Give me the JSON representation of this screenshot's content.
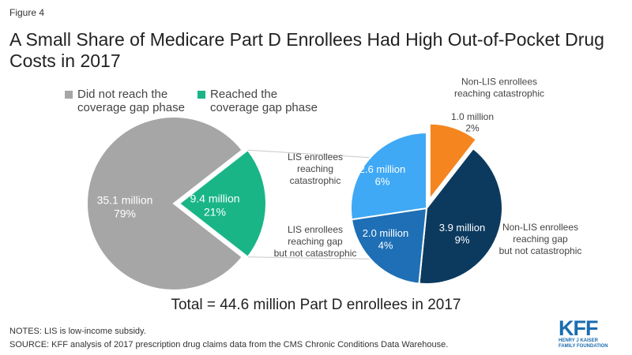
{
  "figure_label": "Figure 4",
  "title": "A Small Share of Medicare Part D Enrollees Had High Out-of-Pocket Drug Costs in 2017",
  "legend": [
    {
      "label": "Did not reach the\ncoverage gap phase",
      "color": "#a6a6a6"
    },
    {
      "label": "Reached the\ncoverage gap phase",
      "color": "#19b587"
    }
  ],
  "chart_data": [
    {
      "type": "pie",
      "title": "",
      "slices": [
        {
          "name": "Did not reach the coverage gap phase",
          "value_label": "35.1 million",
          "percent_label": "79%",
          "value": 35.1,
          "percent": 79,
          "color": "#a6a6a6"
        },
        {
          "name": "Reached the coverage gap phase",
          "value_label": "9.4 million",
          "percent_label": "21%",
          "value": 9.4,
          "percent": 21,
          "color": "#19b587"
        }
      ]
    },
    {
      "type": "pie",
      "title": "",
      "slices": [
        {
          "name": "Non-LIS enrollees reaching catastrophic",
          "value_label": "1.0 million",
          "percent_label": "2%",
          "value": 1.0,
          "percent": 2,
          "color": "#f5861f",
          "exploded": true
        },
        {
          "name": "Non-LIS enrollees reaching gap but not catastrophic",
          "value_label": "3.9 million",
          "percent_label": "9%",
          "value": 3.9,
          "percent": 9,
          "color": "#0c3a5f"
        },
        {
          "name": "LIS enrollees reaching gap but not catastrophic",
          "value_label": "2.0 million",
          "percent_label": "4%",
          "value": 2.0,
          "percent": 4,
          "color": "#1e6fb5"
        },
        {
          "name": "LIS enrollees reaching catastrophic",
          "value_label": "2.6 million",
          "percent_label": "6%",
          "value": 2.6,
          "percent": 6,
          "color": "#3fa9f5"
        }
      ]
    }
  ],
  "outside_labels": {
    "non_lis_catastrophic": "Non-LIS enrollees\nreaching catastrophic",
    "non_lis_gap": "Non-LIS enrollees\nreaching gap\nbut not catastrophic",
    "lis_gap": "LIS enrollees\nreaching gap\nbut not catastrophic",
    "lis_catastrophic": "LIS enrollees\nreaching\ncatastrophic"
  },
  "total_label": "Total = 44.6 million Part D enrollees in 2017",
  "notes": "NOTES: LIS is low-income subsidy.",
  "source": "SOURCE: KFF analysis of 2017 prescription drug claims data from the CMS Chronic Conditions Data Warehouse.",
  "logo": {
    "mark": "KFF",
    "sub": "HENRY J KAISER\nFAMILY FOUNDATION"
  }
}
